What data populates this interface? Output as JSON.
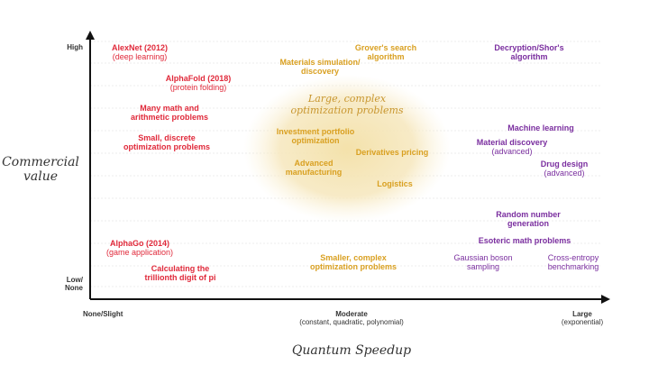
{
  "colors": {
    "classical": "#e0293a",
    "moderate": "#d9a021",
    "exponential": "#7a2e9f",
    "cloud": "#f3e3b0",
    "axis": "#111111",
    "text": "#333333"
  },
  "axes": {
    "y_title_line1": "Commercial",
    "y_title_line2": "value",
    "x_title": "Quantum Speedup",
    "y_ticks": {
      "high": "High",
      "low_line1": "Low/",
      "low_line2": "None"
    },
    "x_ticks": {
      "none": "None/Slight",
      "moderate": "Moderate",
      "moderate_sub": "(constant, quadratic, polynomial)",
      "large": "Large",
      "large_sub": "(exponential)"
    }
  },
  "cloud": {
    "title_line1": "Large, complex",
    "title_line2": "optimization problems"
  },
  "labels": {
    "alexnet": {
      "title": "AlexNet (2012)",
      "sub": "(deep learning)"
    },
    "alphafold": {
      "title": "AlphaFold (2018)",
      "sub": "(protein folding)"
    },
    "math_problems": {
      "line1": "Many math and",
      "line2": "arithmetic problems"
    },
    "small_discrete": {
      "line1": "Small, discrete",
      "line2": "optimization problems"
    },
    "alphago": {
      "title": "AlphaGo (2014)",
      "sub": "(game application)"
    },
    "pi": {
      "line1": "Calculating the",
      "line2": "trillionth digit of pi"
    },
    "grover": {
      "line1": "Grover's search",
      "line2": "algorithm"
    },
    "materials_sim": {
      "line1": "Materials simulation/",
      "line2": "discovery"
    },
    "investment": {
      "line1": "Investment portfolio",
      "line2": "optimization"
    },
    "derivatives": {
      "line1": "Derivatives pricing"
    },
    "manufacturing": {
      "line1": "Advanced",
      "line2": "manufacturing"
    },
    "logistics": {
      "line1": "Logistics"
    },
    "smaller_complex": {
      "line1": "Smaller, complex",
      "line2": "optimization problems"
    },
    "shor": {
      "line1": "Decryption/Shor's",
      "line2": "algorithm"
    },
    "ml": {
      "line1": "Machine learning"
    },
    "material_discovery": {
      "title": "Material discovery",
      "sub": "(advanced)"
    },
    "drug_design": {
      "title": "Drug design",
      "sub": "(advanced)"
    },
    "random_number": {
      "line1": "Random number",
      "line2": "generation"
    },
    "esoteric": {
      "line1": "Esoteric math problems"
    },
    "boson": {
      "line1": "Gaussian boson",
      "line2": "sampling"
    },
    "cross_entropy": {
      "line1": "Cross-entropy",
      "line2": "benchmarking"
    }
  }
}
